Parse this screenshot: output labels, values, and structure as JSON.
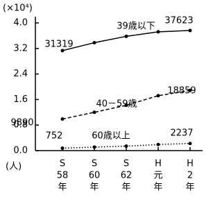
{
  "chart_data": {
    "type": "line",
    "y_unit": "(×10⁴)",
    "x_unit": "(人)",
    "categories": [
      [
        "S",
        "58",
        "年"
      ],
      [
        "S",
        "60",
        "年"
      ],
      [
        "S",
        "62",
        "年"
      ],
      [
        "H",
        "元",
        "年"
      ],
      [
        "H",
        "2",
        "年"
      ]
    ],
    "ylim": [
      0,
      4.0
    ],
    "yticks": [
      {
        "value": 0,
        "label": "0.0"
      },
      {
        "value": 0.8,
        "label": "0.8"
      },
      {
        "value": 1.6,
        "label": "1.6"
      },
      {
        "value": 2.4,
        "label": "2.4"
      },
      {
        "value": 3.2,
        "label": "3.2"
      },
      {
        "value": 4.0,
        "label": "4.0"
      }
    ],
    "grid": false,
    "series": [
      {
        "name": "39歳以下",
        "color": "#000000",
        "style": "solid",
        "values": [
          3.1319,
          3.38,
          3.58,
          3.72,
          3.7623
        ],
        "value_labels": [
          "31319",
          null,
          null,
          null,
          "37623"
        ]
      },
      {
        "name": "40－59歳",
        "color": "#000000",
        "style": "dashed",
        "values": [
          0.989,
          1.2,
          1.42,
          1.72,
          1.8859
        ],
        "value_labels": [
          "9890",
          null,
          null,
          null,
          "18859"
        ]
      },
      {
        "name": "60歳以上",
        "color": "#000000",
        "style": "dotted",
        "values": [
          0.0752,
          0.11,
          0.14,
          0.19,
          0.2237
        ],
        "value_labels": [
          "752",
          null,
          null,
          null,
          "2237"
        ]
      }
    ]
  }
}
